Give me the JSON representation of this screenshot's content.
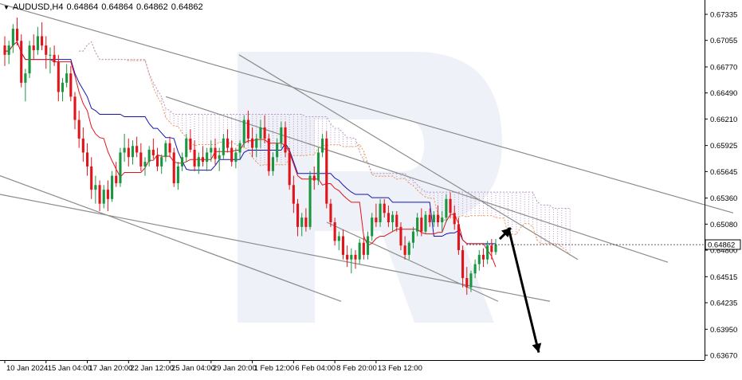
{
  "chart_data": {
    "type": "candlestick",
    "symbol": "AUDUSD,H4",
    "ohlc_header": [
      "0.64864",
      "0.64864",
      "0.64862",
      "0.64862"
    ],
    "current_price": "0.64862",
    "price_line_value": 0.6486,
    "ylim": [
      0.636,
      0.6745
    ],
    "y_ticks": [
      "0.67335",
      "0.67055",
      "0.66770",
      "0.66490",
      "0.66210",
      "0.65925",
      "0.65645",
      "0.65360",
      "0.65080",
      "0.64800",
      "0.64515",
      "0.64235",
      "0.63950",
      "0.63670"
    ],
    "x_ticks": [
      "10 Jan 2024",
      "15 Jan 04:00",
      "17 Jan 20:00",
      "22 Jan 12:00",
      "25 Jan 04:00",
      "29 Jan 20:00",
      "1 Feb 12:00",
      "6 Feb 04:00",
      "8 Feb 20:00",
      "13 Feb 12:00"
    ],
    "bull_color": "#1a9641",
    "bear_color": "#e0141b",
    "tenkan_color": "#e0141b",
    "kijun_color": "#1414b4",
    "cloud_upper_color": "#ef9a5a",
    "cloud_lower_color": "#b896c8",
    "trendline_color": "#8c8c8c",
    "candles": [
      [
        0.67,
        0.671,
        0.6678,
        0.669
      ],
      [
        0.669,
        0.6705,
        0.668,
        0.67
      ],
      [
        0.67,
        0.6723,
        0.6692,
        0.6718
      ],
      [
        0.6718,
        0.673,
        0.67,
        0.6705
      ],
      [
        0.6705,
        0.6712,
        0.6655,
        0.666
      ],
      [
        0.666,
        0.6675,
        0.664,
        0.667
      ],
      [
        0.667,
        0.6705,
        0.6665,
        0.67
      ],
      [
        0.67,
        0.6712,
        0.6685,
        0.6695
      ],
      [
        0.6695,
        0.672,
        0.669,
        0.671
      ],
      [
        0.671,
        0.6725,
        0.6695,
        0.67
      ],
      [
        0.67,
        0.671,
        0.6675,
        0.669
      ],
      [
        0.669,
        0.6698,
        0.667,
        0.669
      ],
      [
        0.669,
        0.67,
        0.6678,
        0.6682
      ],
      [
        0.6682,
        0.669,
        0.664,
        0.665
      ],
      [
        0.665,
        0.6665,
        0.664,
        0.666
      ],
      [
        0.666,
        0.668,
        0.6655,
        0.667
      ],
      [
        0.667,
        0.6678,
        0.664,
        0.6645
      ],
      [
        0.6645,
        0.665,
        0.661,
        0.662
      ],
      [
        0.662,
        0.663,
        0.659,
        0.66
      ],
      [
        0.66,
        0.6612,
        0.6575,
        0.6585
      ],
      [
        0.6585,
        0.6595,
        0.656,
        0.657
      ],
      [
        0.657,
        0.658,
        0.6535,
        0.6545
      ],
      [
        0.6545,
        0.656,
        0.653,
        0.655
      ],
      [
        0.655,
        0.6555,
        0.6522,
        0.653
      ],
      [
        0.653,
        0.655,
        0.6525,
        0.6545
      ],
      [
        0.6545,
        0.6555,
        0.6522,
        0.6535
      ],
      [
        0.6535,
        0.6565,
        0.6532,
        0.656
      ],
      [
        0.656,
        0.6575,
        0.6548,
        0.6552
      ],
      [
        0.6552,
        0.659,
        0.6548,
        0.6585
      ],
      [
        0.6585,
        0.6605,
        0.6575,
        0.659
      ],
      [
        0.659,
        0.66,
        0.657,
        0.658
      ],
      [
        0.658,
        0.6598,
        0.6572,
        0.6592
      ],
      [
        0.6592,
        0.6602,
        0.658,
        0.6585
      ],
      [
        0.6585,
        0.6595,
        0.6565,
        0.657
      ],
      [
        0.657,
        0.658,
        0.656,
        0.6575
      ],
      [
        0.6575,
        0.6592,
        0.657,
        0.6588
      ],
      [
        0.6588,
        0.66,
        0.6578,
        0.6582
      ],
      [
        0.6582,
        0.659,
        0.6565,
        0.657
      ],
      [
        0.657,
        0.6583,
        0.6562,
        0.658
      ],
      [
        0.658,
        0.6598,
        0.6575,
        0.6595
      ],
      [
        0.6595,
        0.6602,
        0.658,
        0.6585
      ],
      [
        0.6585,
        0.659,
        0.6548,
        0.6552
      ],
      [
        0.6552,
        0.6575,
        0.6545,
        0.657
      ],
      [
        0.657,
        0.6585,
        0.6565,
        0.658
      ],
      [
        0.658,
        0.6605,
        0.6575,
        0.66
      ],
      [
        0.66,
        0.661,
        0.6585,
        0.6588
      ],
      [
        0.6588,
        0.6598,
        0.6565,
        0.657
      ],
      [
        0.657,
        0.6585,
        0.6562,
        0.658
      ],
      [
        0.658,
        0.6592,
        0.657,
        0.6575
      ],
      [
        0.6575,
        0.659,
        0.6565,
        0.6585
      ],
      [
        0.6585,
        0.6598,
        0.6575,
        0.659
      ],
      [
        0.659,
        0.66,
        0.6572,
        0.6578
      ],
      [
        0.6578,
        0.659,
        0.6565,
        0.6582
      ],
      [
        0.6582,
        0.6605,
        0.6578,
        0.66
      ],
      [
        0.66,
        0.661,
        0.6585,
        0.659
      ],
      [
        0.659,
        0.6598,
        0.657,
        0.6575
      ],
      [
        0.6575,
        0.659,
        0.6568,
        0.6585
      ],
      [
        0.6585,
        0.6598,
        0.6578,
        0.6595
      ],
      [
        0.6595,
        0.6625,
        0.659,
        0.662
      ],
      [
        0.662,
        0.663,
        0.6595,
        0.66
      ],
      [
        0.66,
        0.6612,
        0.658,
        0.659
      ],
      [
        0.659,
        0.6605,
        0.658,
        0.66
      ],
      [
        0.66,
        0.662,
        0.659,
        0.6612
      ],
      [
        0.6612,
        0.6625,
        0.6595,
        0.66
      ],
      [
        0.66,
        0.6605,
        0.656,
        0.6565
      ],
      [
        0.6565,
        0.6585,
        0.656,
        0.658
      ],
      [
        0.658,
        0.66,
        0.6575,
        0.6595
      ],
      [
        0.6595,
        0.6618,
        0.659,
        0.6612
      ],
      [
        0.6612,
        0.6618,
        0.658,
        0.6585
      ],
      [
        0.6585,
        0.659,
        0.6545,
        0.655
      ],
      [
        0.655,
        0.656,
        0.652,
        0.653
      ],
      [
        0.653,
        0.6535,
        0.6495,
        0.6505
      ],
      [
        0.6505,
        0.652,
        0.6495,
        0.6515
      ],
      [
        0.6515,
        0.6525,
        0.65,
        0.6505
      ],
      [
        0.6505,
        0.6565,
        0.6502,
        0.656
      ],
      [
        0.656,
        0.657,
        0.6545,
        0.6555
      ],
      [
        0.6555,
        0.659,
        0.655,
        0.6585
      ],
      [
        0.6585,
        0.6605,
        0.658,
        0.66
      ],
      [
        0.66,
        0.6608,
        0.6525,
        0.653
      ],
      [
        0.653,
        0.6535,
        0.6505,
        0.651
      ],
      [
        0.651,
        0.6515,
        0.6485,
        0.649
      ],
      [
        0.649,
        0.65,
        0.648,
        0.6495
      ],
      [
        0.6495,
        0.6502,
        0.647,
        0.6475
      ],
      [
        0.6475,
        0.6485,
        0.6462,
        0.647
      ],
      [
        0.647,
        0.6482,
        0.6455,
        0.6475
      ],
      [
        0.6475,
        0.648,
        0.646,
        0.647
      ],
      [
        0.647,
        0.6492,
        0.6465,
        0.6488
      ],
      [
        0.6488,
        0.6495,
        0.647,
        0.6475
      ],
      [
        0.6475,
        0.65,
        0.647,
        0.6495
      ],
      [
        0.6495,
        0.652,
        0.649,
        0.6515
      ],
      [
        0.6515,
        0.653,
        0.6505,
        0.651
      ],
      [
        0.651,
        0.6535,
        0.6505,
        0.653
      ],
      [
        0.653,
        0.6535,
        0.6515,
        0.652
      ],
      [
        0.652,
        0.6528,
        0.6505,
        0.651
      ],
      [
        0.651,
        0.6522,
        0.65,
        0.6518
      ],
      [
        0.6518,
        0.6522,
        0.65,
        0.6505
      ],
      [
        0.6505,
        0.651,
        0.648,
        0.6485
      ],
      [
        0.6485,
        0.6495,
        0.647,
        0.6475
      ],
      [
        0.6475,
        0.649,
        0.647,
        0.6488
      ],
      [
        0.6488,
        0.6505,
        0.6482,
        0.65
      ],
      [
        0.65,
        0.652,
        0.6495,
        0.6515
      ],
      [
        0.6515,
        0.6525,
        0.6495,
        0.65
      ],
      [
        0.65,
        0.6522,
        0.6498,
        0.6518
      ],
      [
        0.6518,
        0.6525,
        0.6505,
        0.651
      ],
      [
        0.651,
        0.6522,
        0.6505,
        0.6518
      ],
      [
        0.6518,
        0.6528,
        0.6505,
        0.651
      ],
      [
        0.651,
        0.6522,
        0.65,
        0.6515
      ],
      [
        0.6515,
        0.654,
        0.651,
        0.6535
      ],
      [
        0.6535,
        0.6542,
        0.6515,
        0.652
      ],
      [
        0.652,
        0.6528,
        0.6502,
        0.6508
      ],
      [
        0.6508,
        0.6515,
        0.6475,
        0.648
      ],
      [
        0.648,
        0.6485,
        0.644,
        0.645
      ],
      [
        0.645,
        0.6462,
        0.6432,
        0.644
      ],
      [
        0.644,
        0.6458,
        0.6435,
        0.6455
      ],
      [
        0.6455,
        0.647,
        0.645,
        0.6465
      ],
      [
        0.6465,
        0.648,
        0.6458,
        0.6475
      ],
      [
        0.6475,
        0.6482,
        0.6462,
        0.647
      ],
      [
        0.647,
        0.649,
        0.6465,
        0.6485
      ],
      [
        0.6485,
        0.6492,
        0.647,
        0.6478
      ],
      [
        0.6478,
        0.6492,
        0.6475,
        0.6486
      ]
    ]
  }
}
